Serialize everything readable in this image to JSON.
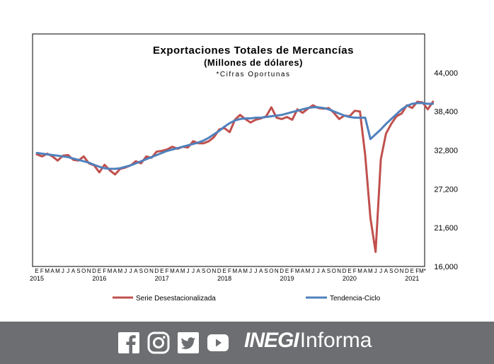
{
  "chart_data": {
    "type": "line",
    "title_lines": [
      "Exportaciones Totales de Mercancías",
      "(Millones de dólares)",
      "*Cifras Oportunas"
    ],
    "xlabel": "",
    "ylabel": "",
    "ylim": [
      16000,
      49600
    ],
    "yticks": [
      "44,000",
      "38,400",
      "32,800",
      "27,200",
      "21,600",
      "16,000"
    ],
    "ytick_values": [
      44000,
      38400,
      32800,
      27200,
      21600,
      16000
    ],
    "month_labels": [
      "E",
      "F",
      "M",
      "A",
      "M",
      "J",
      "J",
      "A",
      "S",
      "O",
      "N",
      "D",
      "E",
      "F",
      "M",
      "A",
      "M",
      "J",
      "J",
      "A",
      "S",
      "O",
      "N",
      "D",
      "E",
      "F",
      "M",
      "A",
      "M",
      "J",
      "J",
      "A",
      "S",
      "O",
      "N",
      "D",
      "E",
      "F",
      "M",
      "A",
      "M",
      "J",
      "J",
      "A",
      "S",
      "O",
      "N",
      "D",
      "E",
      "F",
      "M",
      "A",
      "M",
      "J",
      "J",
      "A",
      "S",
      "O",
      "N",
      "D",
      "E",
      "F",
      "M",
      "A",
      "M",
      "J",
      "J",
      "A",
      "S",
      "O",
      "N",
      "D",
      "E",
      "F",
      "M*"
    ],
    "year_labels": [
      {
        "label": "2015",
        "index": 0
      },
      {
        "label": "2016",
        "index": 12
      },
      {
        "label": "2017",
        "index": 24
      },
      {
        "label": "2018",
        "index": 36
      },
      {
        "label": "2019",
        "index": 48
      },
      {
        "label": "2020",
        "index": 60
      },
      {
        "label": "2021",
        "index": 72
      }
    ],
    "series": [
      {
        "name": "Serie Desestacionalizada",
        "color": "#c0504d",
        "values": [
          32200,
          31900,
          32300,
          31900,
          31300,
          32000,
          32100,
          31400,
          31300,
          31900,
          30900,
          30600,
          29600,
          30700,
          29900,
          29300,
          30100,
          30300,
          30600,
          31200,
          30900,
          31900,
          31700,
          32600,
          32700,
          32900,
          33300,
          33000,
          33300,
          33200,
          34100,
          33800,
          33800,
          34100,
          34700,
          35800,
          36000,
          35400,
          37200,
          37900,
          37300,
          36800,
          37200,
          37400,
          37700,
          39000,
          37500,
          37300,
          37600,
          37200,
          38700,
          38200,
          38800,
          39300,
          38900,
          38800,
          38900,
          38200,
          37300,
          37800,
          37700,
          38500,
          38400,
          32100,
          23000,
          18100,
          31500,
          35200,
          36600,
          37700,
          38100,
          39300,
          38900,
          39800,
          39700,
          38700,
          39800
        ]
      },
      {
        "name": "Tendencia-Ciclo",
        "color": "#4f81bd",
        "values": [
          32400,
          32300,
          32200,
          32100,
          32000,
          31900,
          31800,
          31600,
          31400,
          31200,
          31000,
          30700,
          30400,
          30200,
          30100,
          30100,
          30200,
          30400,
          30600,
          30900,
          31200,
          31500,
          31800,
          32100,
          32400,
          32700,
          32900,
          33100,
          33300,
          33500,
          33700,
          33900,
          34200,
          34600,
          35100,
          35600,
          36200,
          36700,
          37100,
          37300,
          37400,
          37400,
          37500,
          37500,
          37600,
          37700,
          37800,
          37900,
          38100,
          38300,
          38500,
          38700,
          38900,
          39000,
          39000,
          38900,
          38700,
          38400,
          38100,
          37800,
          37600,
          37500,
          37500,
          37500,
          34400,
          35100,
          35800,
          36600,
          37300,
          38000,
          38700,
          39200,
          39500,
          39600,
          39600,
          39500,
          39500
        ]
      }
    ],
    "grid": false,
    "legend_position": "bottom"
  },
  "social": {
    "icons": [
      "facebook-icon",
      "instagram-icon",
      "twitter-icon",
      "youtube-icon"
    ]
  },
  "brand": {
    "bold": "INEGI",
    "light": "Informa"
  }
}
